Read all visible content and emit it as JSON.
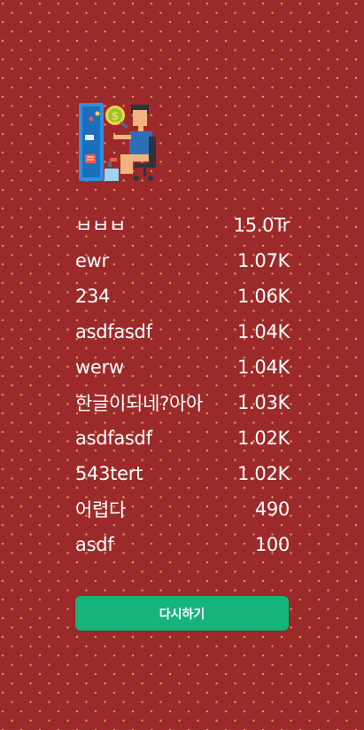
{
  "illustration": {
    "icon": "trader-at-computer-icon"
  },
  "leaderboard": [
    {
      "name": "ㅂㅂㅂ",
      "score": "15.0Tr"
    },
    {
      "name": "ewr",
      "score": "1.07K"
    },
    {
      "name": "234",
      "score": "1.06K"
    },
    {
      "name": "asdfasdf",
      "score": "1.04K"
    },
    {
      "name": "werw",
      "score": "1.04K"
    },
    {
      "name": "한글이되네?아아",
      "score": "1.03K"
    },
    {
      "name": "asdfasdf",
      "score": "1.02K"
    },
    {
      "name": "543tert",
      "score": "1.02K"
    },
    {
      "name": "어렵다",
      "score": "490"
    },
    {
      "name": "asdf",
      "score": "100"
    }
  ],
  "retry_button": {
    "label": "다시하기"
  },
  "colors": {
    "background": "#9c2a2b",
    "pattern_dots": "#d9a04a",
    "button": "#14b47a"
  }
}
